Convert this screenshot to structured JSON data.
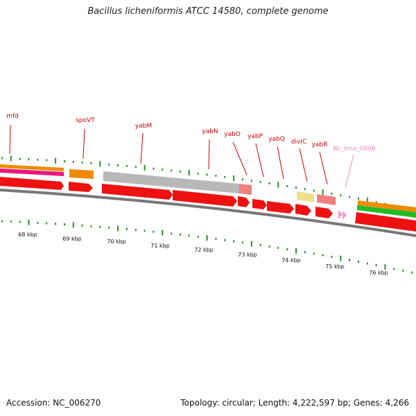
{
  "title": "Bacillus licheniformis ATCC 14580, complete genome",
  "footer": {
    "accession": "Accession: NC_006270",
    "summary": "Topology: circular; Length: 4,222,597 bp; Genes: 4,266"
  },
  "colors": {
    "cds": "#ee1111",
    "cds_light": "#f08080",
    "gene_gray": "#b8b8b8",
    "orange": "#f08a00",
    "magenta": "#e8187a",
    "green": "#22bb22",
    "yellow": "#eee08a",
    "trna": "#f49ad0",
    "tick": "#2a8a2a",
    "label": "#cc0000",
    "trna_label": "#ee88bb",
    "backbone": "#777777"
  },
  "ruler_labels": [
    "68 kbp",
    "69 kbp",
    "70 kbp",
    "71 kbp",
    "72 kbp",
    "73 kbp",
    "74 kbp",
    "75 kbp",
    "76 kbp"
  ],
  "gene_labels": [
    {
      "name": "mfd",
      "kind": "gene"
    },
    {
      "name": "spoVT",
      "kind": "gene"
    },
    {
      "name": "yabM",
      "kind": "gene"
    },
    {
      "name": "yabN",
      "kind": "gene"
    },
    {
      "name": "yabO",
      "kind": "gene"
    },
    {
      "name": "yabP",
      "kind": "gene"
    },
    {
      "name": "yabQ",
      "kind": "gene"
    },
    {
      "name": "divIC",
      "kind": "gene"
    },
    {
      "name": "yabR",
      "kind": "gene"
    },
    {
      "name": "BL_trna_0006",
      "kind": "trna"
    }
  ]
}
